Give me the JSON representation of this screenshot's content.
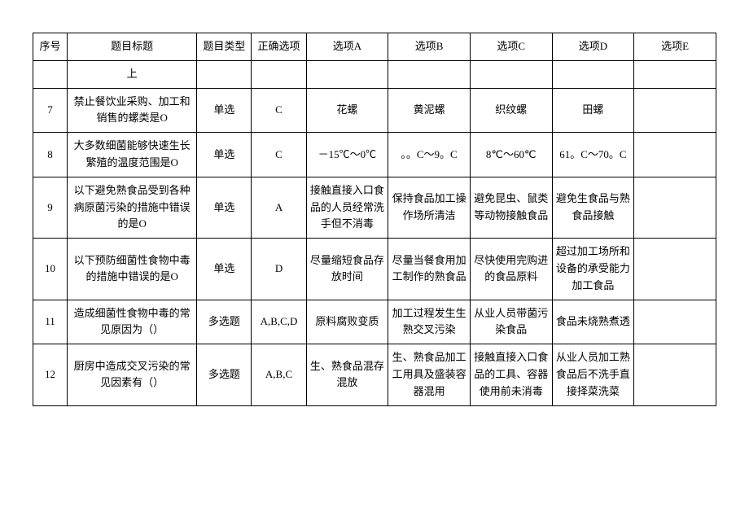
{
  "headers": {
    "seq": "序号",
    "title": "题目标题",
    "type": "题目类型",
    "answer": "正确选项",
    "optA": "选项A",
    "optB": "选项B",
    "optC": "选项C",
    "optD": "选项D",
    "optE": "选项E"
  },
  "rows": [
    {
      "seq": "",
      "title": "上",
      "type": "",
      "answer": "",
      "A": "",
      "B": "",
      "C": "",
      "D": "",
      "E": ""
    },
    {
      "seq": "7",
      "title": "禁止餐饮业采购、加工和销售的螺类是O",
      "type": "单选",
      "answer": "C",
      "A": "花螺",
      "B": "黄泥螺",
      "C": "织纹螺",
      "D": "田螺",
      "E": ""
    },
    {
      "seq": "8",
      "title": "大多数细菌能够快速生长繁殖的温度范围是O",
      "type": "单选",
      "answer": "C",
      "A": "－15℃～0℃",
      "B": "。。C～9。C",
      "C": "8℃～60℃",
      "D": "61。C～70。C",
      "E": ""
    },
    {
      "seq": "9",
      "title": "以下避免熟食品受到各种病原菌污染的措施中错误的是O",
      "type": "单选",
      "answer": "A",
      "A": "接触直接入口食品的人员经常洗手但不消毒",
      "B": "保持食品加工操作场所清洁",
      "C": "避免昆虫、鼠类等动物接触食品",
      "D": "避免生食品与熟食品接触",
      "E": ""
    },
    {
      "seq": "10",
      "title": "以下预防细菌性食物中毒的措施中错误的是O",
      "type": "单选",
      "answer": "D",
      "A": "尽量缩短食品存放时间",
      "B": "尽量当餐食用加工制作的熟食品",
      "C": "尽快使用完购进的食品原料",
      "D": "超过加工场所和设备的承受能力加工食品",
      "E": ""
    },
    {
      "seq": "11",
      "title": "造成细菌性食物中毒的常见原因为（）",
      "type": "多选题",
      "answer": "A,B,C,D",
      "A": "原料腐败变质",
      "B": "加工过程发生生熟交叉污染",
      "C": "从业人员带菌污染食品",
      "D": "食品未烧熟煮透",
      "E": ""
    },
    {
      "seq": "12",
      "title": "厨房中造成交叉污染的常见因素有（）",
      "type": "多选题",
      "answer": "A,B,C",
      "A": "生、熟食品混存混放",
      "B": "生、熟食品加工工用具及盛装容器混用",
      "C": "接触直接入口食品的工具、容器使用前未消毒",
      "D": "从业人员加工熟食品后不洗手直接择菜洗菜",
      "E": ""
    }
  ]
}
